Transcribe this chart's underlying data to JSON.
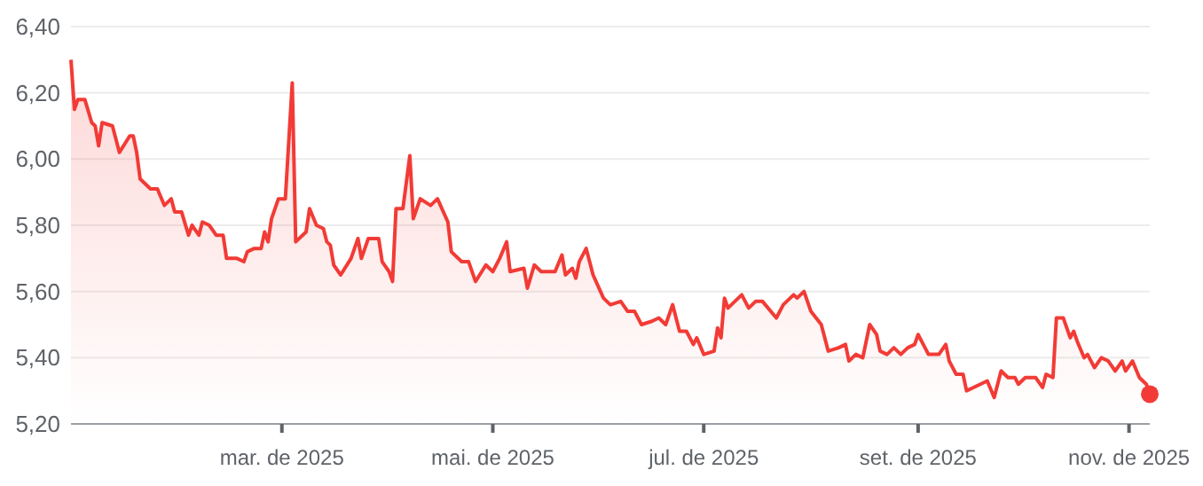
{
  "chart_data": {
    "type": "area",
    "xlim": [
      "2024-12-30",
      "2025-11-07"
    ],
    "ylim": [
      5.2,
      6.4
    ],
    "yticks": [
      {
        "value": 5.2,
        "label": "5,20"
      },
      {
        "value": 5.4,
        "label": "5,40"
      },
      {
        "value": 5.6,
        "label": "5,60"
      },
      {
        "value": 5.8,
        "label": "5,80"
      },
      {
        "value": 6.0,
        "label": "6,00"
      },
      {
        "value": 6.2,
        "label": "6,20"
      },
      {
        "value": 6.4,
        "label": "6,40"
      }
    ],
    "xticks": [
      {
        "value": "2025-03-01",
        "label": "mar. de 2025"
      },
      {
        "value": "2025-05-01",
        "label": "mai. de 2025"
      },
      {
        "value": "2025-07-01",
        "label": "jul. de 2025"
      },
      {
        "value": "2025-09-01",
        "label": "set. de 2025"
      },
      {
        "value": "2025-11-01",
        "label": "nov. de 2025"
      }
    ],
    "grid": "y",
    "marker": "none",
    "line_style": "solid",
    "x": [
      "2024-12-30",
      "2024-12-31",
      "2025-01-01",
      "2025-01-03",
      "2025-01-05",
      "2025-01-06",
      "2025-01-07",
      "2025-01-08",
      "2025-01-11",
      "2025-01-13",
      "2025-01-16",
      "2025-01-17",
      "2025-01-18",
      "2025-01-19",
      "2025-01-22",
      "2025-01-24",
      "2025-01-26",
      "2025-01-28",
      "2025-01-29",
      "2025-01-31",
      "2025-02-02",
      "2025-02-03",
      "2025-02-05",
      "2025-02-06",
      "2025-02-08",
      "2025-02-10",
      "2025-02-12",
      "2025-02-13",
      "2025-02-16",
      "2025-02-18",
      "2025-02-19",
      "2025-02-21",
      "2025-02-23",
      "2025-02-24",
      "2025-02-25",
      "2025-02-26",
      "2025-02-28",
      "2025-03-02",
      "2025-03-04",
      "2025-03-05",
      "2025-03-08",
      "2025-03-09",
      "2025-03-11",
      "2025-03-13",
      "2025-03-14",
      "2025-03-15",
      "2025-03-16",
      "2025-03-18",
      "2025-03-21",
      "2025-03-22",
      "2025-03-23",
      "2025-03-24",
      "2025-03-26",
      "2025-03-29",
      "2025-03-30",
      "2025-04-01",
      "2025-04-02",
      "2025-04-03",
      "2025-04-05",
      "2025-04-07",
      "2025-04-08",
      "2025-04-10",
      "2025-04-13",
      "2025-04-15",
      "2025-04-18",
      "2025-04-19",
      "2025-04-22",
      "2025-04-24",
      "2025-04-26",
      "2025-04-29",
      "2025-05-01",
      "2025-05-03",
      "2025-05-05",
      "2025-05-06",
      "2025-05-10",
      "2025-05-11",
      "2025-05-13",
      "2025-05-15",
      "2025-05-19",
      "2025-05-21",
      "2025-05-22",
      "2025-05-24",
      "2025-05-25",
      "2025-05-26",
      "2025-05-28",
      "2025-05-30",
      "2025-06-02",
      "2025-06-04",
      "2025-06-07",
      "2025-06-09",
      "2025-06-11",
      "2025-06-13",
      "2025-06-16",
      "2025-06-18",
      "2025-06-20",
      "2025-06-22",
      "2025-06-24",
      "2025-06-26",
      "2025-06-28",
      "2025-06-29",
      "2025-07-01",
      "2025-07-04",
      "2025-07-05",
      "2025-07-06",
      "2025-07-07",
      "2025-07-08",
      "2025-07-10",
      "2025-07-12",
      "2025-07-14",
      "2025-07-16",
      "2025-07-18",
      "2025-07-22",
      "2025-07-24",
      "2025-07-27",
      "2025-07-28",
      "2025-07-30",
      "2025-08-01",
      "2025-08-04",
      "2025-08-06",
      "2025-08-09",
      "2025-08-11",
      "2025-08-12",
      "2025-08-14",
      "2025-08-16",
      "2025-08-18",
      "2025-08-20",
      "2025-08-21",
      "2025-08-23",
      "2025-08-25",
      "2025-08-27",
      "2025-08-29",
      "2025-08-31",
      "2025-09-01",
      "2025-09-02",
      "2025-09-04",
      "2025-09-07",
      "2025-09-09",
      "2025-09-10",
      "2025-09-12",
      "2025-09-14",
      "2025-09-15",
      "2025-09-17",
      "2025-09-19",
      "2025-09-21",
      "2025-09-23",
      "2025-09-25",
      "2025-09-27",
      "2025-09-29",
      "2025-09-30",
      "2025-10-02",
      "2025-10-05",
      "2025-10-07",
      "2025-10-08",
      "2025-10-10",
      "2025-10-11",
      "2025-10-13",
      "2025-10-15",
      "2025-10-16",
      "2025-10-17",
      "2025-10-19",
      "2025-10-20",
      "2025-10-22",
      "2025-10-24",
      "2025-10-26",
      "2025-10-28",
      "2025-10-30",
      "2025-10-31",
      "2025-11-02",
      "2025-11-04",
      "2025-11-06",
      "2025-11-07"
    ],
    "series": [
      {
        "color": "#f23b36",
        "values": [
          6.3,
          6.15,
          6.18,
          6.18,
          6.11,
          6.1,
          6.04,
          6.11,
          6.1,
          6.02,
          6.07,
          6.07,
          6.02,
          5.94,
          5.91,
          5.91,
          5.86,
          5.88,
          5.84,
          5.84,
          5.77,
          5.8,
          5.77,
          5.81,
          5.8,
          5.77,
          5.77,
          5.7,
          5.7,
          5.69,
          5.72,
          5.73,
          5.73,
          5.78,
          5.75,
          5.82,
          5.88,
          5.88,
          6.23,
          5.75,
          5.78,
          5.85,
          5.8,
          5.79,
          5.75,
          5.74,
          5.68,
          5.65,
          5.7,
          5.73,
          5.76,
          5.7,
          5.76,
          5.76,
          5.69,
          5.66,
          5.63,
          5.85,
          5.85,
          6.01,
          5.82,
          5.88,
          5.86,
          5.88,
          5.81,
          5.72,
          5.69,
          5.69,
          5.63,
          5.68,
          5.66,
          5.7,
          5.75,
          5.66,
          5.67,
          5.61,
          5.68,
          5.66,
          5.66,
          5.71,
          5.65,
          5.67,
          5.64,
          5.69,
          5.73,
          5.65,
          5.58,
          5.56,
          5.57,
          5.54,
          5.54,
          5.5,
          5.51,
          5.52,
          5.5,
          5.56,
          5.48,
          5.48,
          5.44,
          5.46,
          5.41,
          5.42,
          5.49,
          5.46,
          5.58,
          5.55,
          5.57,
          5.59,
          5.55,
          5.57,
          5.57,
          5.52,
          5.56,
          5.59,
          5.58,
          5.6,
          5.54,
          5.5,
          5.42,
          5.43,
          5.44,
          5.39,
          5.41,
          5.4,
          5.5,
          5.47,
          5.42,
          5.41,
          5.43,
          5.41,
          5.43,
          5.44,
          5.47,
          5.45,
          5.41,
          5.41,
          5.44,
          5.39,
          5.35,
          5.35,
          5.3,
          5.31,
          5.32,
          5.33,
          5.28,
          5.36,
          5.34,
          5.34,
          5.32,
          5.34,
          5.34,
          5.31,
          5.35,
          5.34,
          5.52,
          5.52,
          5.46,
          5.48,
          5.45,
          5.4,
          5.41,
          5.37,
          5.4,
          5.39,
          5.36,
          5.39,
          5.36,
          5.39,
          5.34,
          5.32,
          5.29
        ]
      }
    ]
  }
}
